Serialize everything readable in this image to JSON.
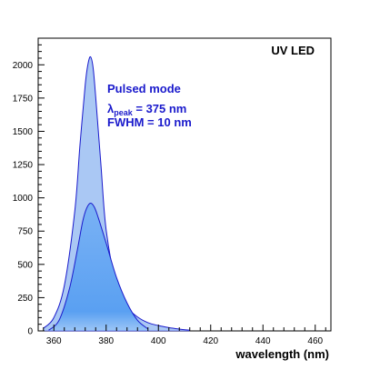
{
  "chart_data": {
    "type": "area",
    "title": "UV LED",
    "xlabel": "wavelength (nm)",
    "ylabel": "",
    "xlim": [
      354,
      466
    ],
    "ylim": [
      0,
      2200
    ],
    "x_ticks": [
      360,
      380,
      400,
      420,
      440,
      460
    ],
    "y_ticks": [
      0,
      250,
      500,
      750,
      1000,
      1250,
      1500,
      1750,
      2000
    ],
    "grid": false,
    "annotations": {
      "mode": "Pulsed mode",
      "lambda_symbol": "λ",
      "lambda_sub": "peak",
      "lambda_value": " = 375 nm",
      "fwhm": "FWHM = 10 nm"
    },
    "series": [
      {
        "outer": true,
        "x": [
          356,
          360,
          364,
          368,
          370,
          372,
          373,
          374,
          375,
          376,
          378,
          380,
          384,
          388,
          392,
          396,
          400,
          404,
          408,
          412
        ],
        "values": [
          20,
          100,
          340,
          900,
          1400,
          1850,
          2000,
          2060,
          1980,
          1760,
          1250,
          760,
          330,
          180,
          105,
          62,
          40,
          25,
          14,
          5
        ],
        "fill": "#aac8f4",
        "stroke": "#1a1acc"
      },
      {
        "outer": false,
        "x": [
          358,
          362,
          366,
          369,
          371,
          372.5,
          374,
          375.5,
          377,
          380,
          384,
          388,
          392,
          396
        ],
        "values": [
          5,
          80,
          320,
          610,
          820,
          920,
          960,
          930,
          850,
          660,
          400,
          210,
          80,
          15
        ],
        "fill": "#5aa0f2",
        "stroke": "#1a1acc"
      }
    ],
    "colors": {
      "annotation": "#1a1acc",
      "axis": "#000000"
    }
  }
}
